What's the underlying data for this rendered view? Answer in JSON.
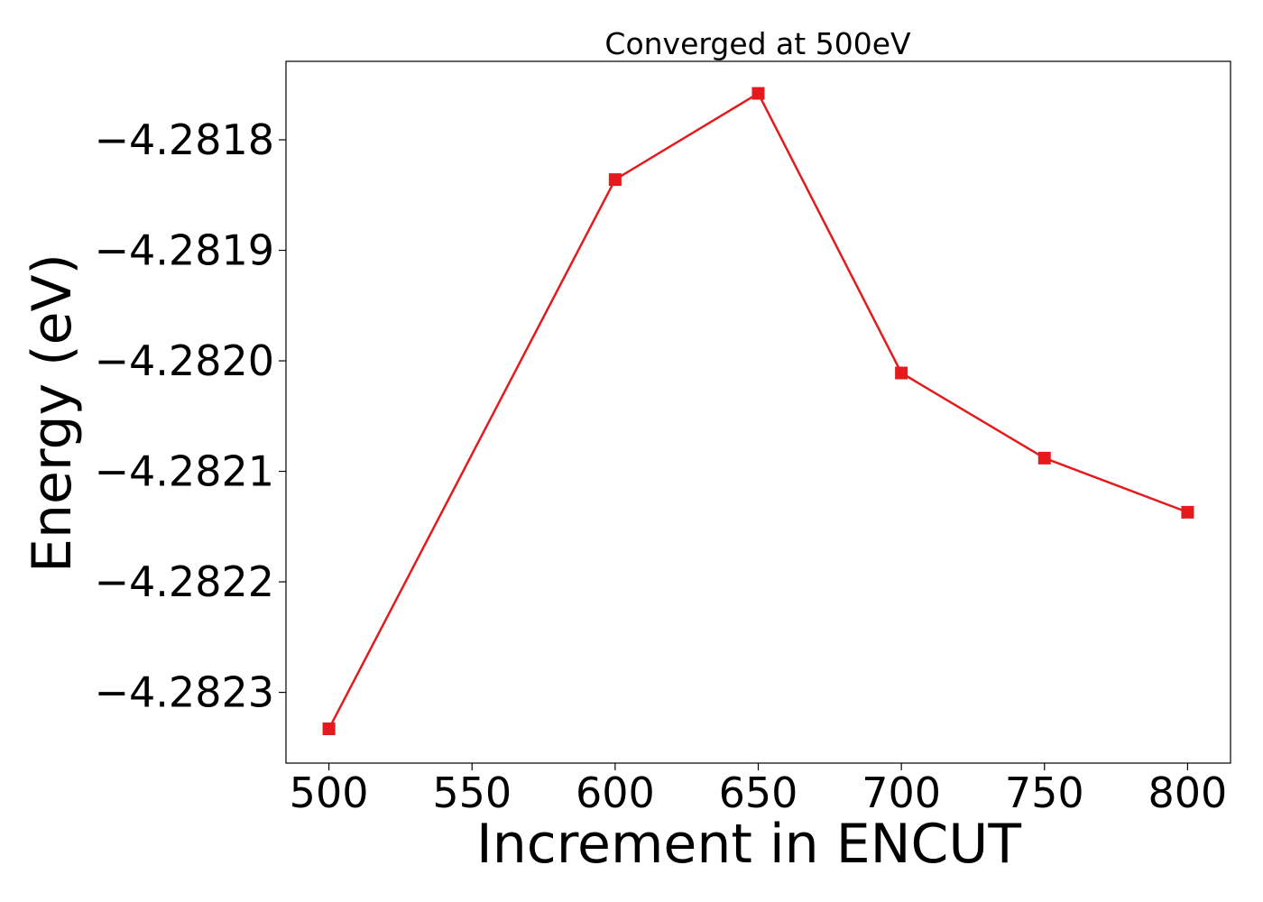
{
  "chart_data": {
    "type": "line",
    "title": "Converged at 500eV",
    "xlabel": "Increment in ENCUT",
    "ylabel": "Energy (eV)",
    "x": [
      500,
      600,
      650,
      700,
      750,
      800
    ],
    "series": [
      {
        "values": [
          -4.282333,
          -4.281836,
          -4.281758,
          -4.282011,
          -4.282088,
          -4.282137
        ],
        "color": "#e41a1c",
        "marker": "square"
      }
    ],
    "xticks": [
      500,
      550,
      600,
      650,
      700,
      750,
      800
    ],
    "xtick_labels": [
      "500",
      "550",
      "600",
      "650",
      "700",
      "750",
      "800"
    ],
    "yticks": [
      -4.2818,
      -4.2819,
      -4.282,
      -4.2821,
      -4.2822,
      -4.2823
    ],
    "ytick_labels": [
      "−4.2818",
      "−4.2819",
      "−4.2820",
      "−4.2821",
      "−4.2822",
      "−4.2823"
    ],
    "xlim": [
      485,
      815
    ],
    "ylim": [
      -4.282364,
      -4.281729
    ],
    "grid": false,
    "legend": false
  }
}
